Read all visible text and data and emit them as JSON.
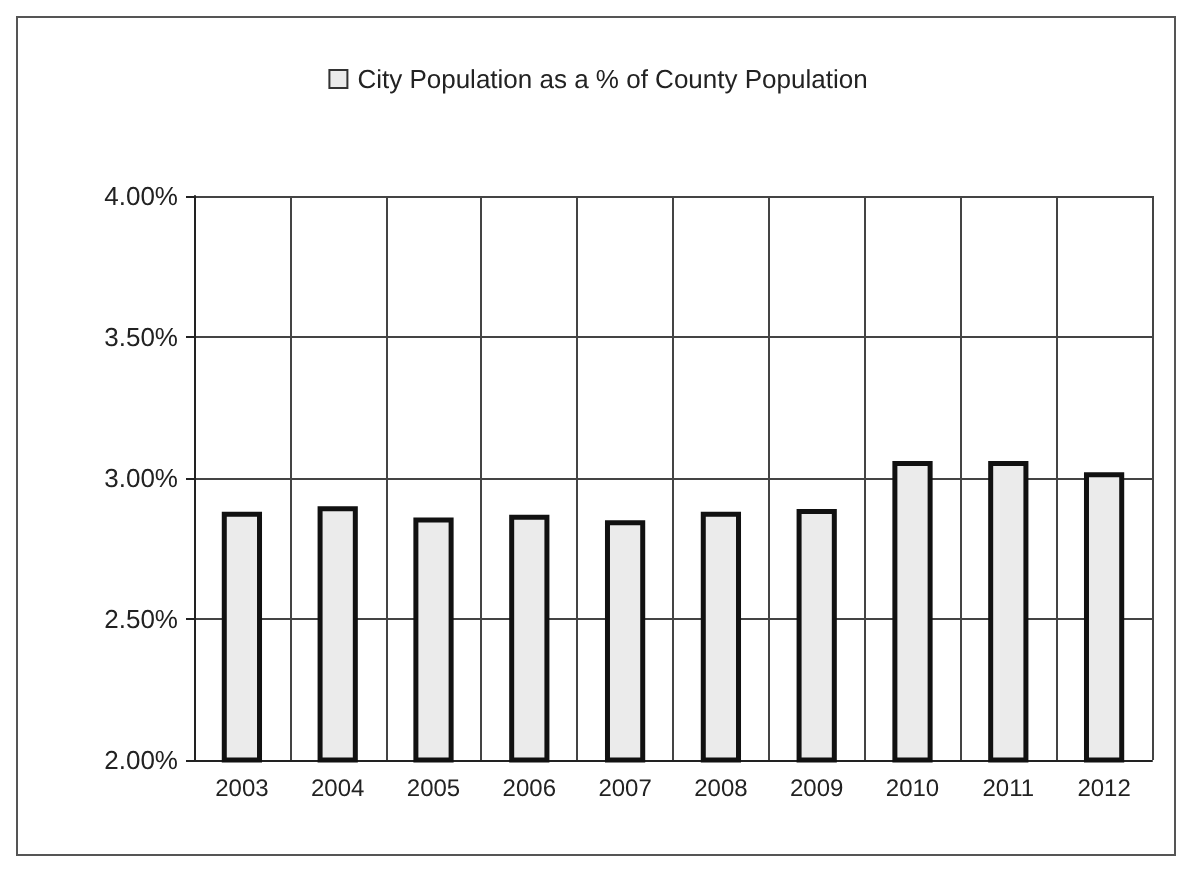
{
  "chart_data": {
    "type": "bar",
    "categories": [
      "2003",
      "2004",
      "2005",
      "2006",
      "2007",
      "2008",
      "2009",
      "2010",
      "2011",
      "2012"
    ],
    "series": [
      {
        "name": "City Population as a % of County Population",
        "color": "#ebebeb",
        "values": [
          2.88,
          2.9,
          2.86,
          2.87,
          2.85,
          2.88,
          2.89,
          3.06,
          3.06,
          3.02
        ]
      }
    ],
    "ylim": [
      2,
      4
    ],
    "yticks": [
      {
        "value": 2,
        "label": "2.00%"
      },
      {
        "value": 2.5,
        "label": "2.50%"
      },
      {
        "value": 3,
        "label": "3.00%"
      },
      {
        "value": 3.5,
        "label": "3.50%"
      },
      {
        "value": 4,
        "label": "4.00%"
      }
    ],
    "grid": true,
    "legend": "top"
  }
}
